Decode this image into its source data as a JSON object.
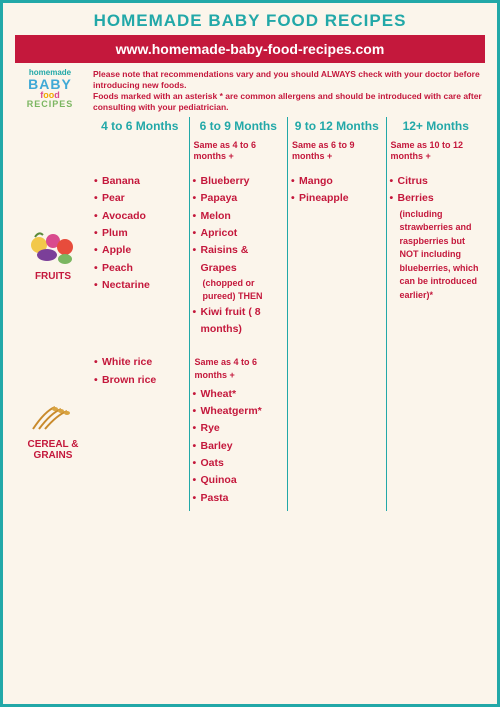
{
  "title": "HOMEMADE BABY FOOD RECIPES",
  "url": "www.homemade-baby-food-recipes.com",
  "logo": {
    "l1": "homemade",
    "l2": "BABY",
    "l3a": "f",
    "l3b": "oo",
    "l3c": "d",
    "l4": "RECIPES"
  },
  "disclaimer": {
    "line1": "Please note that recommendations vary and you should ALWAYS check with your doctor before introducing new foods.",
    "line2": "Foods marked with an asterisk * are common allergens and should be introduced with care after consulting with your pediatrician."
  },
  "columns": [
    {
      "label": "4 to 6 Months",
      "sub": ""
    },
    {
      "label": "6 to 9 Months",
      "sub": "Same as 4 to 6 months +"
    },
    {
      "label": "9 to 12 Months",
      "sub": "Same as 6 to 9 months +"
    },
    {
      "label": "12+ Months",
      "sub": "Same as 10 to 12 months +"
    }
  ],
  "rows": {
    "fruits": {
      "label": "FRUITS",
      "c0": [
        "Banana",
        "Pear",
        "Avocado",
        "Plum",
        "Apple",
        "Peach",
        "Nectarine"
      ],
      "c1": [
        "Blueberry",
        "Papaya",
        "Melon",
        "Apricot",
        "Raisins & Grapes"
      ],
      "c1_note": "(chopped or pureed) THEN",
      "c1_extra": "Kiwi fruit ( 8 months)",
      "c2": [
        "Mango",
        "Pineapple"
      ],
      "c3": [
        "Citrus",
        "Berries"
      ],
      "c3_note": "(including strawberries and raspberries but NOT including blueberries, which can be introduced earlier)*"
    },
    "grains": {
      "label": "CEREAL & GRAINS",
      "c0": [
        "White rice",
        "Brown rice"
      ],
      "c1_pre": "Same as 4 to 6 months +",
      "c1": [
        "Wheat*",
        "Wheatgerm*",
        "Rye",
        "Barley",
        "Oats",
        "Quinoa",
        "Pasta"
      ]
    }
  },
  "colors": {
    "teal": "#22a8a8",
    "red": "#c4183c",
    "bg": "#fbf5eb"
  }
}
